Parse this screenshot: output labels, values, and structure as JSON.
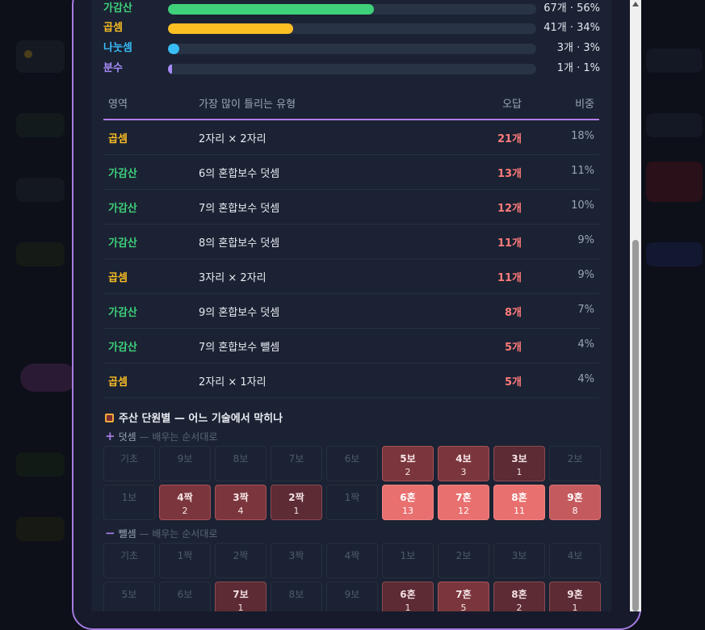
{
  "progress": [
    {
      "label": "가감산",
      "value": "67개 · 56%",
      "fraction": 0.56,
      "color": "#3ed07a"
    },
    {
      "label": "곱셈",
      "value": "41개 · 34%",
      "fraction": 0.34,
      "color": "#fbbf24"
    },
    {
      "label": "나눗셈",
      "value": "3개 · 3%",
      "fraction": 0.03,
      "color": "#38bdf8"
    },
    {
      "label": "분수",
      "value": "1개 · 1%",
      "fraction": 0.01,
      "color": "#a78bfa"
    }
  ],
  "table": {
    "headers": {
      "area": "영역",
      "type": "가장 많이 틀리는 유형",
      "wrong": "오답",
      "ratio": "비중"
    },
    "rows": [
      {
        "area": "곱셈",
        "type": "2자리 × 2자리",
        "wrong": "21개",
        "ratio": "18%",
        "color": "#fbbf24"
      },
      {
        "area": "가감산",
        "type": "6의 혼합보수 덧셈",
        "wrong": "13개",
        "ratio": "11%",
        "color": "#3ed07a"
      },
      {
        "area": "가감산",
        "type": "7의 혼합보수 덧셈",
        "wrong": "12개",
        "ratio": "10%",
        "color": "#3ed07a"
      },
      {
        "area": "가감산",
        "type": "8의 혼합보수 덧셈",
        "wrong": "11개",
        "ratio": "9%",
        "color": "#3ed07a"
      },
      {
        "area": "곱셈",
        "type": "3자리 × 2자리",
        "wrong": "11개",
        "ratio": "9%",
        "color": "#fbbf24"
      },
      {
        "area": "가감산",
        "type": "9의 혼합보수 덧셈",
        "wrong": "8개",
        "ratio": "7%",
        "color": "#3ed07a"
      },
      {
        "area": "가감산",
        "type": "7의 혼합보수 뺄셈",
        "wrong": "5개",
        "ratio": "4%",
        "color": "#3ed07a"
      },
      {
        "area": "곱셈",
        "type": "2자리 × 1자리",
        "wrong": "5개",
        "ratio": "4%",
        "color": "#fbbf24"
      }
    ]
  },
  "section": {
    "title": "주산 단원별 — 어느 기술에서 막히나",
    "icon": "abacus-icon",
    "addition": {
      "symbol": "+",
      "label": "덧셈",
      "hint": "— 배우는 순서대로",
      "cells": [
        {
          "name": "기초",
          "count": ""
        },
        {
          "name": "9보",
          "count": ""
        },
        {
          "name": "8보",
          "count": ""
        },
        {
          "name": "7보",
          "count": ""
        },
        {
          "name": "6보",
          "count": ""
        },
        {
          "name": "5보",
          "count": "2",
          "level": "l2"
        },
        {
          "name": "4보",
          "count": "3",
          "level": "l2"
        },
        {
          "name": "3보",
          "count": "1",
          "level": "l1"
        },
        {
          "name": "2보",
          "count": ""
        },
        {
          "name": "1보",
          "count": ""
        },
        {
          "name": "4짝",
          "count": "2",
          "level": "l2"
        },
        {
          "name": "3짝",
          "count": "4",
          "level": "l2"
        },
        {
          "name": "2짝",
          "count": "1",
          "level": "l1"
        },
        {
          "name": "1짝",
          "count": ""
        },
        {
          "name": "6혼",
          "count": "13",
          "level": "l4"
        },
        {
          "name": "7혼",
          "count": "12",
          "level": "l4"
        },
        {
          "name": "8혼",
          "count": "11",
          "level": "l4"
        },
        {
          "name": "9혼",
          "count": "8",
          "level": "l3"
        }
      ]
    },
    "subtraction": {
      "symbol": "−",
      "label": "뺄셈",
      "hint": "— 배우는 순서대로",
      "cells": [
        {
          "name": "기초",
          "count": ""
        },
        {
          "name": "1짝",
          "count": ""
        },
        {
          "name": "2짝",
          "count": ""
        },
        {
          "name": "3짝",
          "count": ""
        },
        {
          "name": "4짝",
          "count": ""
        },
        {
          "name": "1보",
          "count": ""
        },
        {
          "name": "2보",
          "count": ""
        },
        {
          "name": "3보",
          "count": ""
        },
        {
          "name": "4보",
          "count": ""
        },
        {
          "name": "5보",
          "count": ""
        },
        {
          "name": "6보",
          "count": ""
        },
        {
          "name": "7보",
          "count": "1",
          "level": "l1"
        },
        {
          "name": "8보",
          "count": ""
        },
        {
          "name": "9보",
          "count": ""
        },
        {
          "name": "6혼",
          "count": "1",
          "level": "l1"
        },
        {
          "name": "7혼",
          "count": "5",
          "level": "l2"
        },
        {
          "name": "8혼",
          "count": "2",
          "level": "l1"
        },
        {
          "name": "9혼",
          "count": "1",
          "level": "l1"
        }
      ]
    }
  }
}
